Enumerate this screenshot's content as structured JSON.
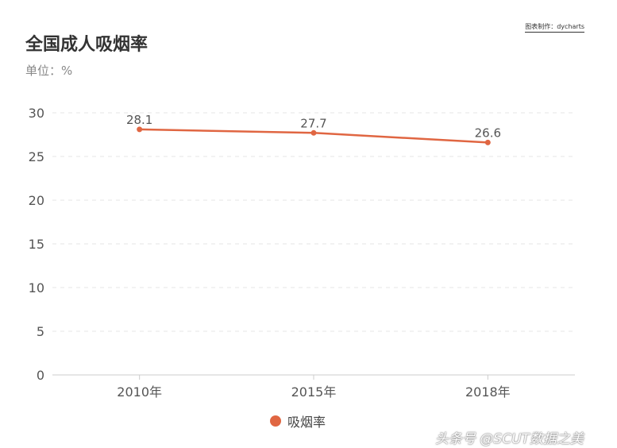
{
  "title": "全国成人吸烟率",
  "subtitle": "单位：%",
  "credit": "图表制作：dycharts",
  "watermark": "头条号 @SCUT数据之美",
  "colors": {
    "series": "#e06642",
    "grid": "#e6e6e6",
    "axis": "#cccccc"
  },
  "chart_data": {
    "type": "line",
    "categories": [
      "2010年",
      "2015年",
      "2018年"
    ],
    "series": [
      {
        "name": "吸烟率",
        "values": [
          28.1,
          27.7,
          26.6
        ]
      }
    ],
    "ylim": [
      0,
      30
    ],
    "yticks": [
      0,
      5,
      10,
      15,
      20,
      25,
      30
    ],
    "grid": true,
    "legend": "bottom",
    "data_labels": true
  }
}
